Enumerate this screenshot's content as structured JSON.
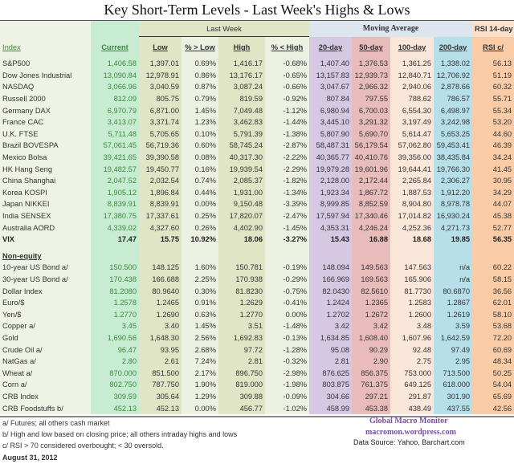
{
  "title": "Key Short-Term Levels -  Last Week's Highs & Lows",
  "group_headers": {
    "last_week": "Last Week",
    "moving_average": "Moving Average",
    "rsi": "RSI 14-day"
  },
  "columns": [
    "Index",
    "Current",
    "Low",
    "% > Low",
    "High",
    "% < High",
    "20-day",
    "50-day",
    "100-day",
    "200-day",
    "RSI c/"
  ],
  "equity_rows": [
    [
      "S&P500",
      "1,406.58",
      "1,397.01",
      "0.69%",
      "1,416.17",
      "-0.68%",
      "1,407.40",
      "1,376.53",
      "1,361.25",
      "1,338.02",
      "56.13"
    ],
    [
      "Dow Jones Industrial",
      "13,090.84",
      "12,978.91",
      "0.86%",
      "13,176.17",
      "-0.65%",
      "13,157.83",
      "12,939.73",
      "12,840.71",
      "12,706.92",
      "51.19"
    ],
    [
      "NASDAQ",
      "3,066.96",
      "3,040.59",
      "0.87%",
      "3,087.24",
      "-0.66%",
      "3,047.67",
      "2,966.32",
      "2,940.06",
      "2,878.66",
      "60.32"
    ],
    [
      "Russell 2000",
      "812.09",
      "805.75",
      "0.79%",
      "819.59",
      "-0.92%",
      "807.84",
      "797.55",
      "788.62",
      "786.57",
      "55.71"
    ],
    [
      "Germany DAX",
      "6,970.79",
      "6,871.00",
      "1.45%",
      "7,049.48",
      "-1.12%",
      "6,980.94",
      "6,700.03",
      "6,554.30",
      "6,498.97",
      "55.34"
    ],
    [
      "France CAC",
      "3,413.07",
      "3,371.74",
      "1.23%",
      "3,462.83",
      "-1.44%",
      "3,445.10",
      "3,291.32",
      "3,197.49",
      "3,242.98",
      "53.20"
    ],
    [
      "U.K. FTSE",
      "5,711.48",
      "5,705.65",
      "0.10%",
      "5,791.39",
      "-1.38%",
      "5,807.90",
      "5,690.70",
      "5,614.47",
      "5,653.25",
      "44.60"
    ],
    [
      "Brazil BOVESPA",
      "57,061.45",
      "56,719.36",
      "0.60%",
      "58,745.24",
      "-2.87%",
      "58,487.31",
      "56,179.54",
      "57,062.80",
      "59,453.41",
      "46.39"
    ],
    [
      "Mexico Bolsa",
      "39,421.65",
      "39,390.58",
      "0.08%",
      "40,317.30",
      "-2.22%",
      "40,365.77",
      "40,410.76",
      "39,356.00",
      "38,435.84",
      "34.24"
    ],
    [
      "HK  Hang Seng",
      "19,482.57",
      "19,450.77",
      "0.16%",
      "19,939.54",
      "-2.29%",
      "19,979.28",
      "19,601.96",
      "19,644.41",
      "19,766.30",
      "41.45"
    ],
    [
      "China Shanghai",
      "2,047.52",
      "2,032.54",
      "0.74%",
      "2,085.37",
      "-1.82%",
      "2,128.00",
      "2,172.44",
      "2,265.84",
      "2,306.27",
      "30.95"
    ],
    [
      "Korea KOSPI",
      "1,905.12",
      "1,896.84",
      "0.44%",
      "1,931.00",
      "-1.34%",
      "1,923.34",
      "1,867.72",
      "1,887.53",
      "1,912.20",
      "34.29"
    ],
    [
      "Japan NIKKEI",
      "8,839.91",
      "8,839.91",
      "0.00%",
      "9,150.48",
      "-3.39%",
      "8,999.85",
      "8,852.59",
      "8,904.80",
      "8,978.78",
      "44.07"
    ],
    [
      "India SENSEX",
      "17,380.75",
      "17,337.61",
      "0.25%",
      "17,820.07",
      "-2.47%",
      "17,597.94",
      "17,340.46",
      "17,014.82",
      "16,930.24",
      "45.38"
    ],
    [
      "Australia AORD",
      "4,339.02",
      "4,327.60",
      "0.26%",
      "4,402.90",
      "-1.45%",
      "4,353.31",
      "4,246.24",
      "4,252.36",
      "4,271.73",
      "52.77"
    ]
  ],
  "vix_row": [
    "VIX",
    "17.47",
    "15.75",
    "10.92%",
    "18.06",
    "-3.27%",
    "15.43",
    "16.88",
    "18.68",
    "19.85",
    "56.35"
  ],
  "non_equity_label": "Non-equity",
  "non_equity_rows": [
    [
      "10-year US Bond  a/",
      "150.500",
      "148.125",
      "1.60%",
      "150.781",
      "-0.19%",
      "148.094",
      "149.563",
      "147.563",
      "n/a",
      "60.22"
    ],
    [
      "30-year US Bond  a/",
      "170.438",
      "166.688",
      "2.25%",
      "170.938",
      "-0.29%",
      "166.969",
      "169.563",
      "165.906",
      "n/a",
      "58.15"
    ],
    [
      "Dollar Index",
      "81.2080",
      "80.9640",
      "0.30%",
      "81.8230",
      "-0.75%",
      "82.0430",
      "82.5610",
      "81.7730",
      "80.6870",
      "36.56"
    ],
    [
      "Euro/$",
      "1.2578",
      "1.2465",
      "0.91%",
      "1.2629",
      "-0.41%",
      "1.2424",
      "1.2365",
      "1.2583",
      "1.2867",
      "62.01"
    ],
    [
      "Yen/$",
      "1.2770",
      "1.2690",
      "0.63%",
      "1.2770",
      "0.00%",
      "1.2702",
      "1.2672",
      "1.2600",
      "1.2619",
      "58.10"
    ],
    [
      "Copper  a/",
      "3.45",
      "3.40",
      "1.45%",
      "3.51",
      "-1.48%",
      "3.42",
      "3.42",
      "3.48",
      "3.59",
      "53.68"
    ],
    [
      "Gold",
      "1,690.56",
      "1,648.30",
      "2.56%",
      "1,692.83",
      "-0.13%",
      "1,634.85",
      "1,608.40",
      "1,607.96",
      "1,642.59",
      "72.20"
    ],
    [
      "Crude Oil  a/",
      "96.47",
      "93.95",
      "2.68%",
      "97.72",
      "-1.28%",
      "95.08",
      "90.29",
      "92.48",
      "97.49",
      "60.69"
    ],
    [
      "NatGas  a/",
      "2.80",
      "2.61",
      "7.24%",
      "2.81",
      "-0.32%",
      "2.81",
      "2.90",
      "2.75",
      "2.95",
      "48.34"
    ],
    [
      "Wheat  a/",
      "870.000",
      "851.500",
      "2.17%",
      "896.750",
      "-2.98%",
      "876.625",
      "856.375",
      "753.000",
      "713.500",
      "50.25"
    ],
    [
      "Corn  a/",
      "802.750",
      "787.750",
      "1.90%",
      "819.000",
      "-1.98%",
      "803.875",
      "761.375",
      "649.125",
      "618.000",
      "54.04"
    ],
    [
      "CRB Index",
      "309.59",
      "305.64",
      "1.29%",
      "309.88",
      "-0.09%",
      "304.66",
      "297.21",
      "291.87",
      "301.90",
      "65.69"
    ],
    [
      "CRB Foodstuffs  b/",
      "452.13",
      "452.13",
      "0.00%",
      "456.77",
      "-1.02%",
      "458.99",
      "453.38",
      "438.49",
      "437.55",
      "42.56"
    ]
  ],
  "footnotes": [
    "a/  Futures; all others cash market",
    "b/  High and low based on closing price;  all others intraday highs and lows",
    "c/  RSI > 70 considered overbought;  < 30 oversold."
  ],
  "date": "August 31, 2012",
  "brand": {
    "name": "Global Macro Monitor",
    "site": "macromon.wordpress.com",
    "source": "Data Source: Yahoo, Barchart.com"
  }
}
